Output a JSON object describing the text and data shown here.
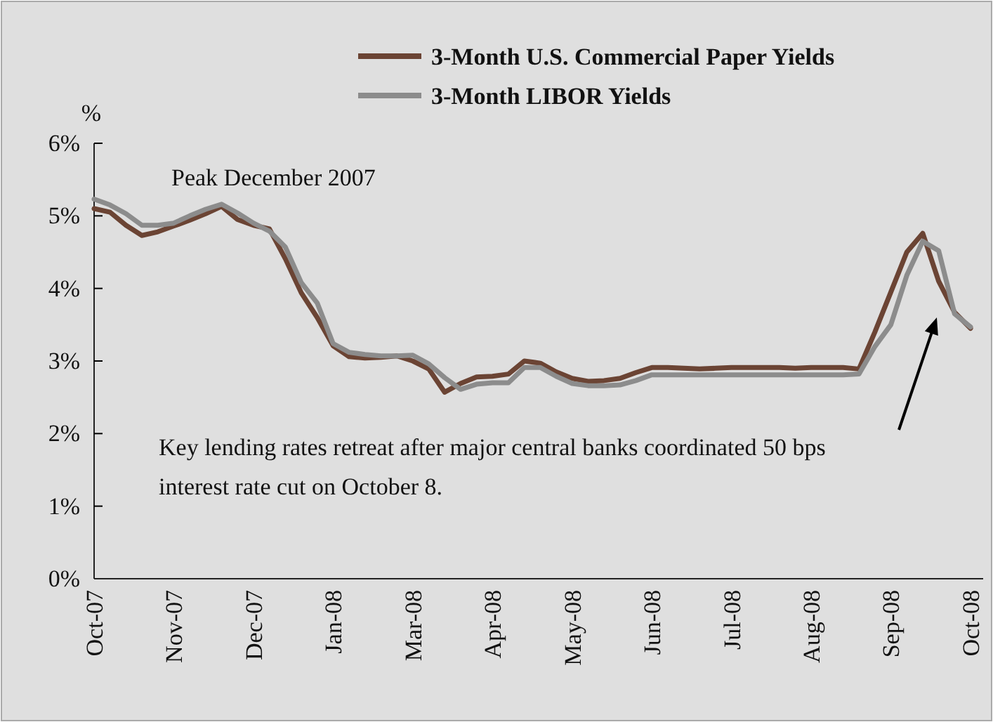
{
  "chart_data": {
    "type": "line",
    "ylabel": "%",
    "categories": [
      "Oct-07",
      null,
      null,
      null,
      null,
      "Nov-07",
      null,
      null,
      null,
      null,
      "Dec-07",
      null,
      null,
      null,
      null,
      "Jan-08",
      null,
      null,
      null,
      null,
      "Mar-08",
      null,
      null,
      null,
      null,
      "Apr-08",
      null,
      null,
      null,
      null,
      "May-08",
      null,
      null,
      null,
      null,
      "Jun-08",
      null,
      null,
      null,
      null,
      "Jul-08",
      null,
      null,
      null,
      null,
      "Aug-08",
      null,
      null,
      null,
      null,
      "Sep-08",
      null,
      null,
      null,
      null,
      "Oct-08"
    ],
    "series": [
      {
        "name": "3-Month U.S. Commercial Paper Yields",
        "color": "#6b4434",
        "values": [
          5.1,
          5.05,
          4.87,
          4.73,
          4.78,
          4.86,
          4.94,
          5.03,
          5.13,
          4.95,
          4.87,
          4.82,
          4.41,
          3.94,
          3.6,
          3.21,
          3.06,
          3.04,
          3.05,
          3.07,
          3.0,
          2.89,
          2.57,
          2.69,
          2.78,
          2.79,
          2.82,
          3.0,
          2.97,
          2.85,
          2.76,
          2.72,
          2.73,
          2.76,
          2.84,
          2.91,
          2.91,
          2.9,
          2.89,
          2.9,
          2.91,
          2.91,
          2.91,
          2.91,
          2.9,
          2.91,
          2.91,
          2.91,
          2.89,
          3.4,
          3.95,
          4.5,
          4.76,
          4.1,
          3.67,
          3.45
        ]
      },
      {
        "name": "3-Month LIBOR Yields",
        "color": "#8c8c8c",
        "values": [
          5.23,
          5.15,
          5.03,
          4.87,
          4.87,
          4.9,
          5.0,
          5.09,
          5.16,
          5.04,
          4.9,
          4.79,
          4.57,
          4.08,
          3.8,
          3.24,
          3.12,
          3.09,
          3.07,
          3.07,
          3.08,
          2.96,
          2.77,
          2.61,
          2.68,
          2.7,
          2.7,
          2.91,
          2.91,
          2.79,
          2.69,
          2.66,
          2.66,
          2.67,
          2.73,
          2.81,
          2.81,
          2.81,
          2.81,
          2.81,
          2.81,
          2.81,
          2.81,
          2.81,
          2.81,
          2.81,
          2.81,
          2.81,
          2.82,
          3.2,
          3.5,
          4.18,
          4.65,
          4.52,
          3.65,
          3.47
        ]
      }
    ],
    "ylim": [
      0,
      6
    ],
    "yticks": [
      {
        "value": 0,
        "label": "0%"
      },
      {
        "value": 1,
        "label": "1%"
      },
      {
        "value": 2,
        "label": "2%"
      },
      {
        "value": 3,
        "label": "3%"
      },
      {
        "value": 4,
        "label": "4%"
      },
      {
        "value": 5,
        "label": "5%"
      },
      {
        "value": 6,
        "label": "6%"
      }
    ],
    "annotations": [
      "Peak December 2007",
      "Key lending rates retreat after major central banks coordinated 50 bps interest rate cut on October 8."
    ],
    "legend": "top",
    "grid": false,
    "line_style": "solid",
    "marker": "none"
  }
}
